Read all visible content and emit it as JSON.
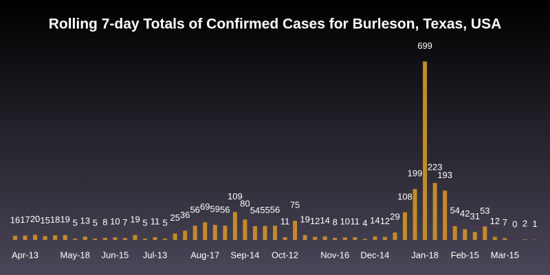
{
  "chart_data": {
    "type": "bar",
    "title": "Rolling 7-day Totals of Confirmed Cases for Burleson, Texas, USA",
    "categories": [
      null,
      "Apr-13",
      null,
      null,
      null,
      null,
      "May-18",
      null,
      null,
      null,
      "Jun-15",
      null,
      null,
      null,
      "Jul-13",
      null,
      null,
      null,
      null,
      "Aug-17",
      null,
      null,
      null,
      "Sep-14",
      null,
      null,
      null,
      "Oct-12",
      null,
      null,
      null,
      null,
      "Nov-16",
      null,
      null,
      null,
      "Dec-14",
      null,
      null,
      null,
      null,
      "Jan-18",
      null,
      null,
      null,
      "Feb-15",
      null,
      null,
      null,
      "Mar-15",
      null,
      null,
      null
    ],
    "values": [
      16,
      17,
      20,
      15,
      18,
      19,
      5,
      13,
      5,
      8,
      10,
      7,
      19,
      5,
      11,
      5,
      25,
      36,
      56,
      69,
      59,
      56,
      109,
      80,
      54,
      55,
      56,
      11,
      75,
      19,
      12,
      14,
      8,
      10,
      11,
      4,
      14,
      12,
      29,
      108,
      199,
      699,
      223,
      193,
      54,
      42,
      31,
      53,
      12,
      7,
      0,
      2,
      1
    ],
    "color": "#c48a2c",
    "ylim": [
      0,
      700
    ]
  }
}
